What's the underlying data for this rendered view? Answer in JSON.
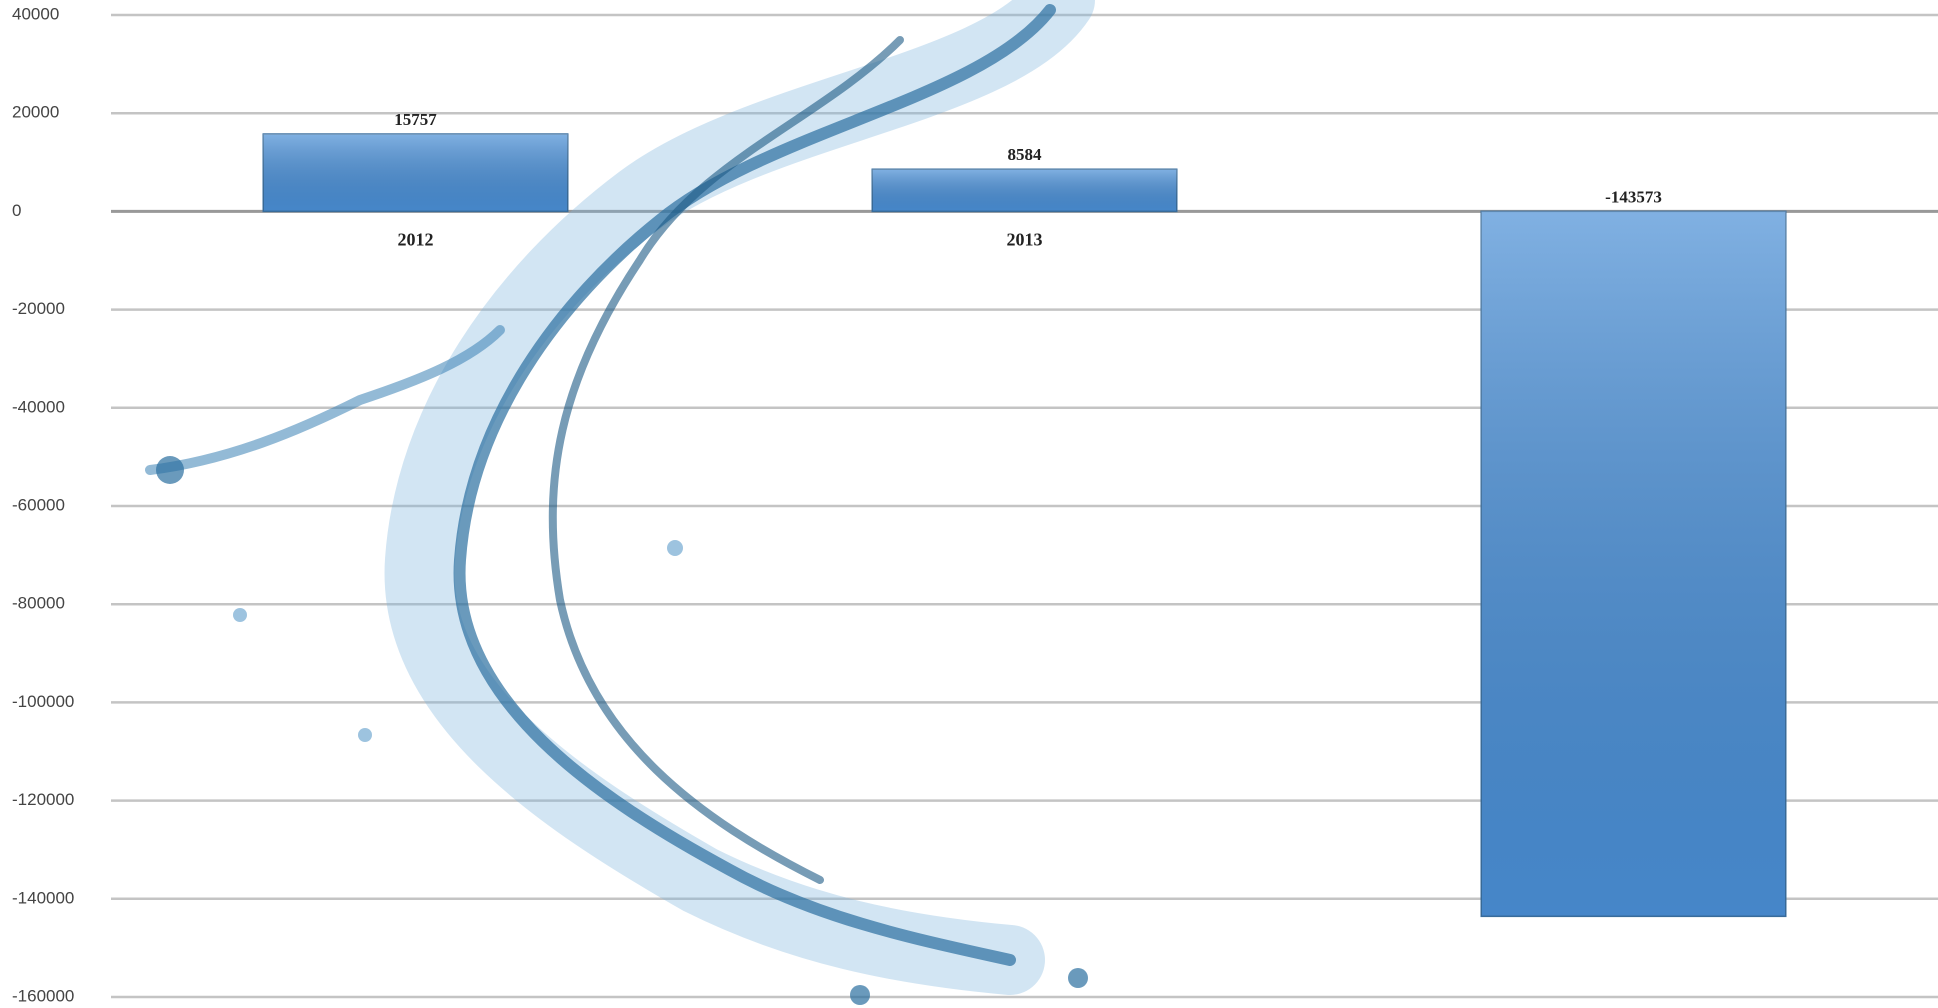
{
  "chart_data": {
    "type": "bar",
    "categories": [
      "2012",
      "2013",
      null
    ],
    "values": [
      15757,
      8584,
      -143573
    ],
    "color": "#4a8fd6",
    "ylim": [
      -160000,
      40000
    ],
    "yticks": [
      -160000,
      -140000,
      -120000,
      -100000,
      -80000,
      -60000,
      -40000,
      -20000,
      0,
      20000,
      40000
    ],
    "grid": true
  }
}
